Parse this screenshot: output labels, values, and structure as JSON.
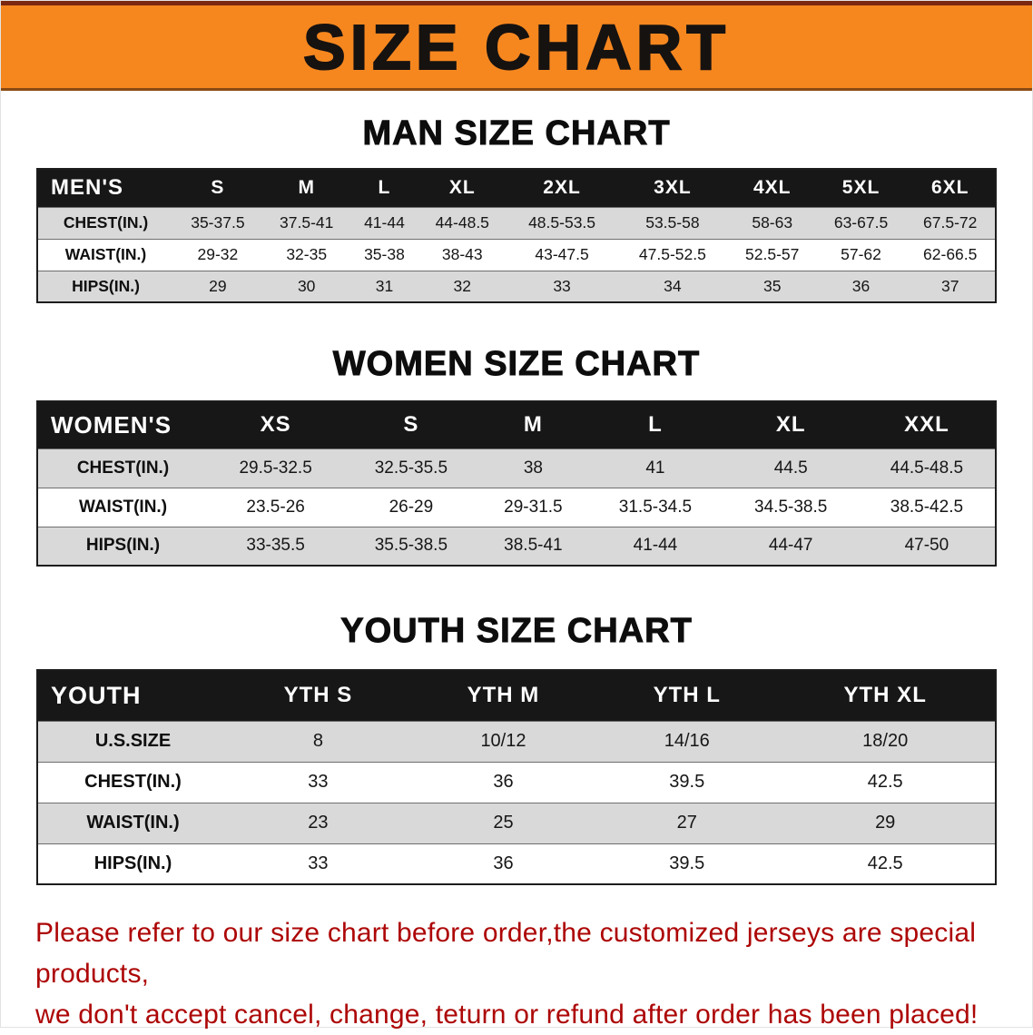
{
  "banner": {
    "title": "SIZE CHART",
    "background": "#F6871F",
    "text_color": "#161210"
  },
  "sections": [
    {
      "heading": "MAN SIZE CHART",
      "table": {
        "header": [
          "MEN'S",
          "S",
          "M",
          "L",
          "XL",
          "2XL",
          "3XL",
          "4XL",
          "5XL",
          "6XL"
        ],
        "rows": [
          {
            "label": "CHEST(IN.)",
            "values": [
              "35-37.5",
              "37.5-41",
              "41-44",
              "44-48.5",
              "48.5-53.5",
              "53.5-58",
              "58-63",
              "63-67.5",
              "67.5-72"
            ]
          },
          {
            "label": "WAIST(IN.)",
            "values": [
              "29-32",
              "32-35",
              "35-38",
              "38-43",
              "43-47.5",
              "47.5-52.5",
              "52.5-57",
              "57-62",
              "62-66.5"
            ]
          },
          {
            "label": "HIPS(IN.)",
            "values": [
              "29",
              "30",
              "31",
              "32",
              "33",
              "34",
              "35",
              "36",
              "37"
            ]
          }
        ]
      }
    },
    {
      "heading": "WOMEN SIZE CHART",
      "table": {
        "header": [
          "WOMEN'S",
          "XS",
          "S",
          "M",
          "L",
          "XL",
          "XXL"
        ],
        "rows": [
          {
            "label": "CHEST(IN.)",
            "values": [
              "29.5-32.5",
              "32.5-35.5",
              "38",
              "41",
              "44.5",
              "44.5-48.5"
            ]
          },
          {
            "label": "WAIST(IN.)",
            "values": [
              "23.5-26",
              "26-29",
              "29-31.5",
              "31.5-34.5",
              "34.5-38.5",
              "38.5-42.5"
            ]
          },
          {
            "label": "HIPS(IN.)",
            "values": [
              "33-35.5",
              "35.5-38.5",
              "38.5-41",
              "41-44",
              "44-47",
              "47-50"
            ]
          }
        ]
      }
    },
    {
      "heading": "YOUTH SIZE CHART",
      "table": {
        "header": [
          "YOUTH",
          "YTH S",
          "YTH M",
          "YTH L",
          "YTH XL"
        ],
        "rows": [
          {
            "label": "U.S.SIZE",
            "values": [
              "8",
              "10/12",
              "14/16",
              "18/20"
            ]
          },
          {
            "label": "CHEST(IN.)",
            "values": [
              "33",
              "36",
              "39.5",
              "42.5"
            ]
          },
          {
            "label": "WAIST(IN.)",
            "values": [
              "23",
              "25",
              "27",
              "29"
            ]
          },
          {
            "label": "HIPS(IN.)",
            "values": [
              "33",
              "36",
              "39.5",
              "42.5"
            ]
          }
        ]
      }
    }
  ],
  "footer": {
    "lines": [
      "Please refer to our size chart before order,the customized jerseys are special products,",
      "we don't accept cancel, change, teturn or refund after order has been placed!"
    ],
    "text_color": "#AD0606"
  },
  "colors": {
    "table_header_bg": "#171717",
    "table_header_text": "#FFFFFF",
    "stripe_gray": "#D9D9D9",
    "stripe_white": "#FFFFFF"
  }
}
